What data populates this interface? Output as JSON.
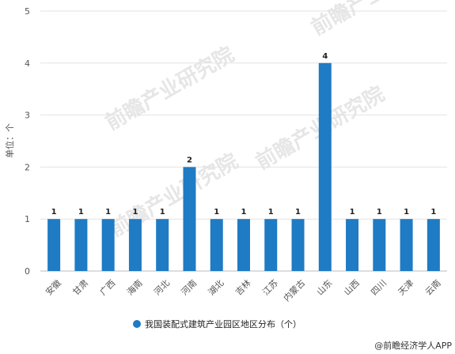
{
  "chart_data": {
    "type": "bar",
    "title": "",
    "xlabel": "",
    "ylabel": "单位：个",
    "ylim": [
      0,
      5
    ],
    "yticks": [
      0,
      1,
      2,
      3,
      4,
      5
    ],
    "grid": true,
    "legend_position": "bottom",
    "categories": [
      "安徽",
      "甘肃",
      "广西",
      "海南",
      "河北",
      "河南",
      "湖北",
      "吉林",
      "江苏",
      "内蒙古",
      "山东",
      "山西",
      "四川",
      "天津",
      "云南"
    ],
    "series": [
      {
        "name": "我国装配式建筑产业园区地区分布（个）",
        "values": [
          1,
          1,
          1,
          1,
          1,
          2,
          1,
          1,
          1,
          1,
          4,
          1,
          1,
          1,
          1
        ],
        "color": "#1e7bc4"
      }
    ],
    "data_labels": true
  },
  "watermark": "前瞻产业研究院",
  "source": "@前瞻经济学人APP"
}
